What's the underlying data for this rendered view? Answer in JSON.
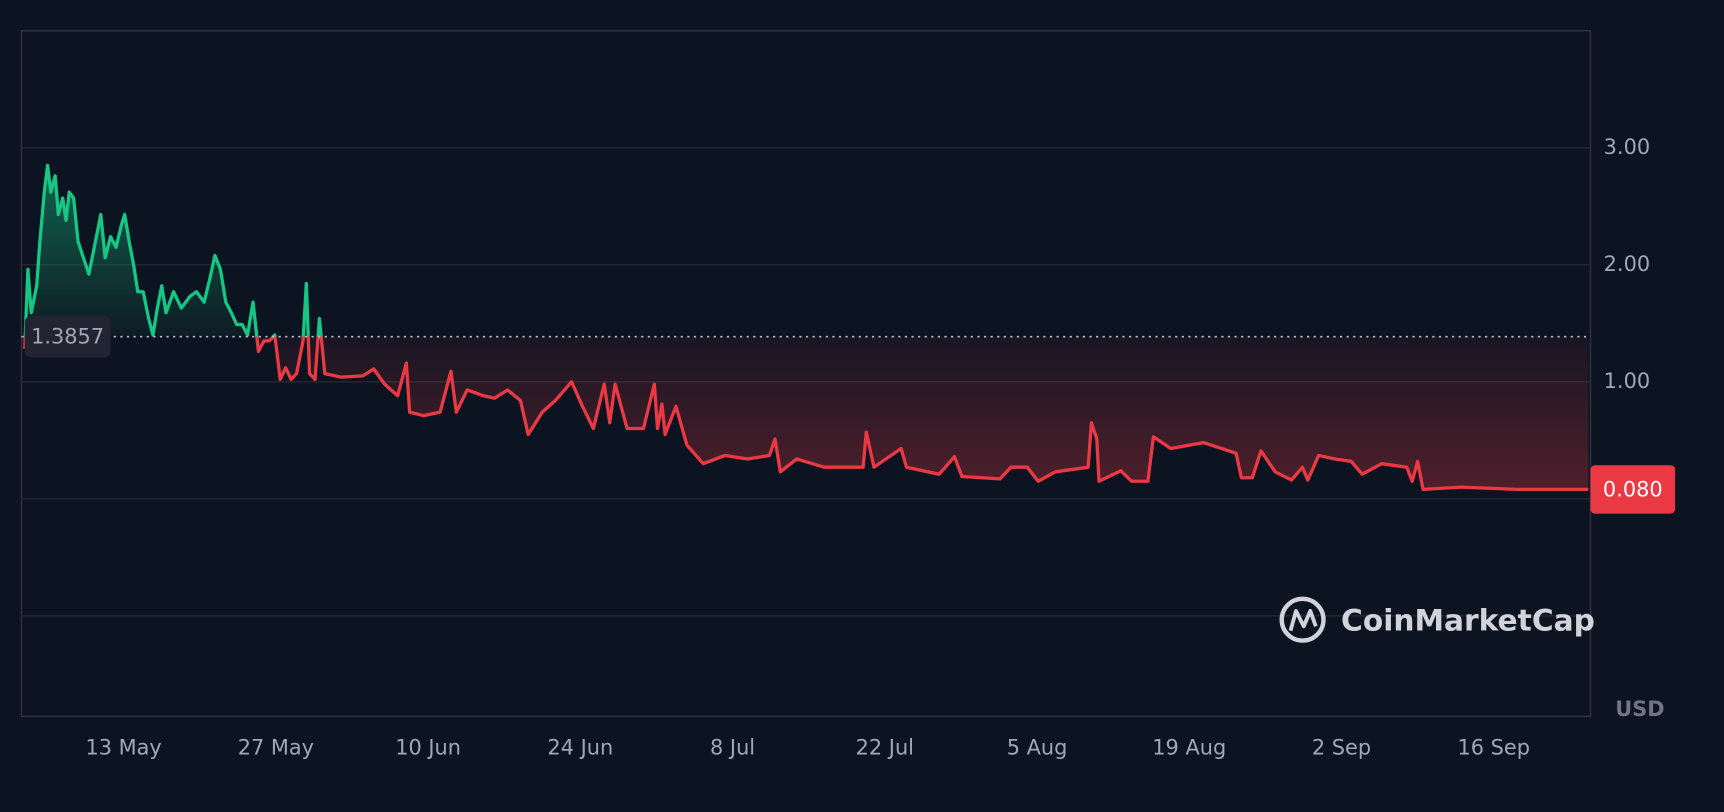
{
  "chart_data": {
    "type": "line",
    "x": [
      124.9,
      125.2,
      125.5,
      126.0,
      126.3,
      126.7,
      127.0,
      127.3,
      127.7,
      128.0,
      128.4,
      128.7,
      129.0,
      129.4,
      129.8,
      130.3,
      130.8,
      131.3,
      131.6,
      131.9,
      132.3,
      132.8,
      133.3,
      133.8,
      134.1,
      134.5,
      134.9,
      135.3,
      135.8,
      136.3,
      136.7,
      137.1,
      137.5,
      137.9,
      138.6,
      139.3,
      140.1,
      140.7,
      141.4,
      141.9,
      142.4,
      142.9,
      143.4,
      143.9,
      144.4,
      144.9,
      145.4,
      145.9,
      146.4,
      146.9,
      147.4,
      147.9,
      148.4,
      148.9,
      149.4,
      149.9,
      150.5,
      150.8,
      151.1,
      151.6,
      152.0,
      152.5,
      154.0,
      156.0,
      157.0,
      158.0,
      159.2,
      160.0,
      160.3,
      161.6,
      163.1,
      164.1,
      164.6,
      165.6,
      167.1,
      168.1,
      169.3,
      170.5,
      171.2,
      172.5,
      173.7,
      175.2,
      176.2,
      177.2,
      178.2,
      178.7,
      179.2,
      180.3,
      181.8,
      182.8,
      183.1,
      183.5,
      183.8,
      184.8,
      185.8,
      187.3,
      189.3,
      191.4,
      193.4,
      193.9,
      194.4,
      195.9,
      198.4,
      202.0,
      202.3,
      203.0,
      205.5,
      206.0,
      209.0,
      210.4,
      211.1,
      214.6,
      215.6,
      217.1,
      218.1,
      219.7,
      222.7,
      223.0,
      223.5,
      223.7,
      225.7,
      226.7,
      228.2,
      228.7,
      230.3,
      233.3,
      236.3,
      236.8,
      237.8,
      238.6,
      239.9,
      241.4,
      242.4,
      242.9,
      243.9,
      245.4,
      246.9,
      247.9,
      249.7,
      252.0,
      252.5,
      253.0,
      253.5,
      257.0,
      262.1,
      268.7
    ],
    "values": [
      1.28,
      1.96,
      1.59,
      1.82,
      2.2,
      2.62,
      2.85,
      2.62,
      2.76,
      2.43,
      2.57,
      2.38,
      2.62,
      2.57,
      2.2,
      2.06,
      1.92,
      2.15,
      2.29,
      2.43,
      2.06,
      2.24,
      2.15,
      2.34,
      2.43,
      2.2,
      2.01,
      1.77,
      1.77,
      1.54,
      1.4,
      1.63,
      1.82,
      1.59,
      1.77,
      1.63,
      1.73,
      1.77,
      1.68,
      1.87,
      2.08,
      1.96,
      1.68,
      1.59,
      1.49,
      1.49,
      1.4,
      1.68,
      1.26,
      1.35,
      1.35,
      1.4,
      1.02,
      1.12,
      1.02,
      1.07,
      1.35,
      1.84,
      1.07,
      1.02,
      1.54,
      1.07,
      1.04,
      1.05,
      1.11,
      0.98,
      0.88,
      1.16,
      0.74,
      0.71,
      0.74,
      1.09,
      0.74,
      0.93,
      0.88,
      0.86,
      0.93,
      0.84,
      0.55,
      0.74,
      0.84,
      1.0,
      0.79,
      0.6,
      0.98,
      0.65,
      0.98,
      0.6,
      0.6,
      0.98,
      0.6,
      0.81,
      0.55,
      0.79,
      0.46,
      0.3,
      0.37,
      0.34,
      0.37,
      0.51,
      0.23,
      0.34,
      0.27,
      0.27,
      0.57,
      0.27,
      0.43,
      0.27,
      0.21,
      0.36,
      0.19,
      0.17,
      0.27,
      0.27,
      0.15,
      0.23,
      0.27,
      0.65,
      0.51,
      0.15,
      0.24,
      0.15,
      0.15,
      0.53,
      0.43,
      0.48,
      0.39,
      0.18,
      0.18,
      0.41,
      0.23,
      0.16,
      0.27,
      0.16,
      0.37,
      0.34,
      0.32,
      0.21,
      0.3,
      0.27,
      0.15,
      0.32,
      0.08,
      0.1,
      0.08,
      0.08
    ],
    "up_color": "#16c784",
    "down_color": "#ea3943",
    "baseline": {
      "value": 1.3857,
      "label": "1.3857"
    },
    "current": {
      "value": 0.08,
      "label": "0.080"
    },
    "currency": "USD",
    "watermark": "CoinMarketCap",
    "xlim": [
      124.6,
      268.9
    ],
    "xticks": [
      {
        "value": 134,
        "label": "13 May"
      },
      {
        "value": 148,
        "label": "27 May"
      },
      {
        "value": 162,
        "label": "10 Jun"
      },
      {
        "value": 176,
        "label": "24 Jun"
      },
      {
        "value": 190,
        "label": "8 Jul"
      },
      {
        "value": 204,
        "label": "22 Jul"
      },
      {
        "value": 218,
        "label": "5 Aug"
      },
      {
        "value": 232,
        "label": "19 Aug"
      },
      {
        "value": 246,
        "label": "2 Sep"
      },
      {
        "value": 260,
        "label": "16 Sep"
      }
    ],
    "ylim": [
      -1.86,
      4.0
    ],
    "yticks": [
      {
        "value": -1,
        "label": null
      },
      {
        "value": 0,
        "label": null
      },
      {
        "value": 1,
        "label": "1.00"
      },
      {
        "value": 2,
        "label": "2.00"
      },
      {
        "value": 3,
        "label": "3.00"
      }
    ],
    "grid": true
  }
}
